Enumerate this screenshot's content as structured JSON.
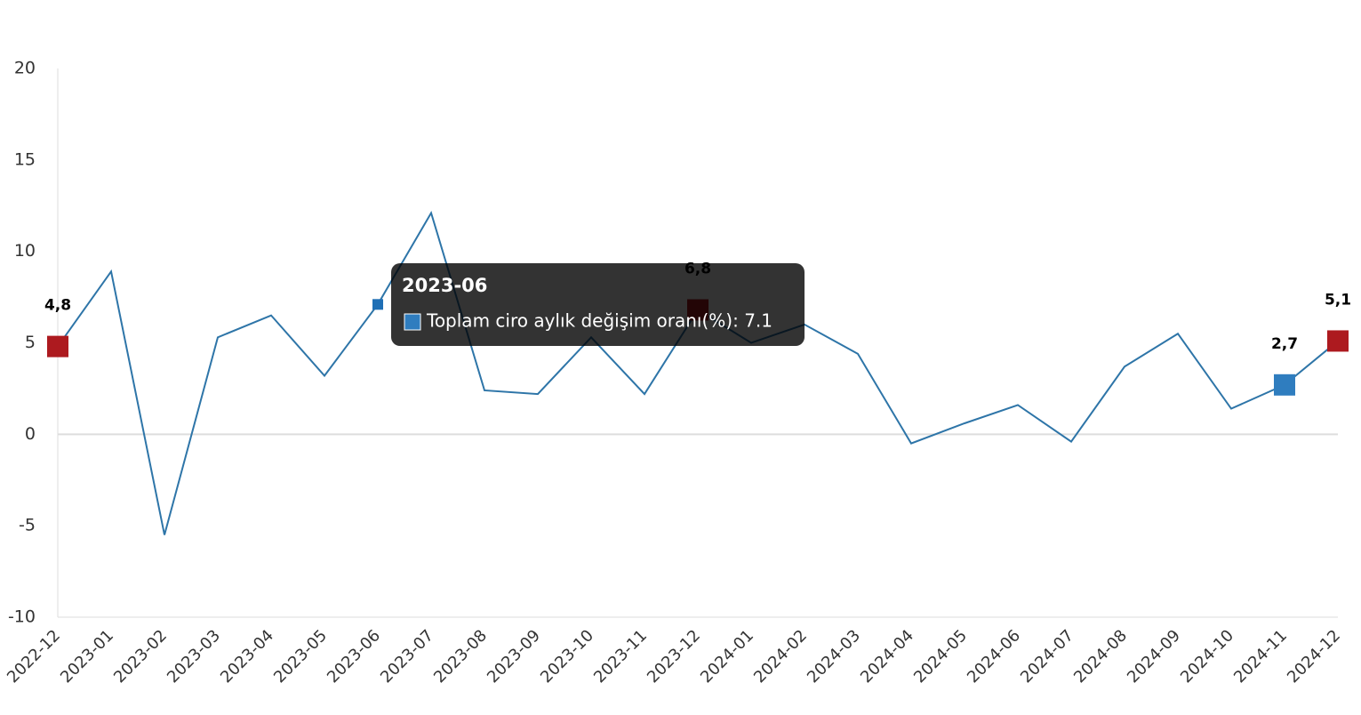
{
  "chart_data": {
    "type": "line",
    "categories": [
      "2022-12",
      "2023-01",
      "2023-02",
      "2023-03",
      "2023-04",
      "2023-05",
      "2023-06",
      "2023-07",
      "2023-08",
      "2023-09",
      "2023-10",
      "2023-11",
      "2023-12",
      "2024-01",
      "2024-02",
      "2024-03",
      "2024-04",
      "2024-05",
      "2024-06",
      "2024-07",
      "2024-08",
      "2024-09",
      "2024-10",
      "2024-11",
      "2024-12"
    ],
    "series": [
      {
        "name": "Toplam ciro aylık değişim oranı(%)",
        "color": "#2e75a8",
        "values": [
          4.8,
          8.9,
          -5.5,
          5.3,
          6.5,
          3.2,
          7.1,
          12.1,
          2.4,
          2.2,
          5.3,
          2.2,
          6.8,
          5.0,
          6.0,
          4.4,
          -0.5,
          0.6,
          1.6,
          -0.4,
          3.7,
          5.5,
          1.4,
          2.7,
          5.1
        ],
        "value_labels": [
          "4,8",
          null,
          null,
          null,
          null,
          null,
          null,
          null,
          null,
          null,
          null,
          null,
          "6,8",
          null,
          null,
          null,
          null,
          null,
          null,
          null,
          null,
          null,
          null,
          "2,7",
          "5,1"
        ],
        "marker_colors": [
          "#ad1a1f",
          null,
          null,
          null,
          null,
          null,
          "#1f6fb5",
          null,
          null,
          null,
          null,
          null,
          "#ad1a1f",
          null,
          null,
          null,
          null,
          null,
          null,
          null,
          null,
          null,
          null,
          "#2f7dbf",
          "#ad1a1f"
        ]
      }
    ],
    "ylim": [
      -10,
      20
    ],
    "yticks": [
      -10,
      -5,
      0,
      5,
      10,
      15,
      20
    ],
    "grid": false,
    "tooltip": {
      "title": "2023-06",
      "text": "Toplam ciro aylık değişim oranı(%): 7.1",
      "color": "#2f7dbf"
    }
  }
}
